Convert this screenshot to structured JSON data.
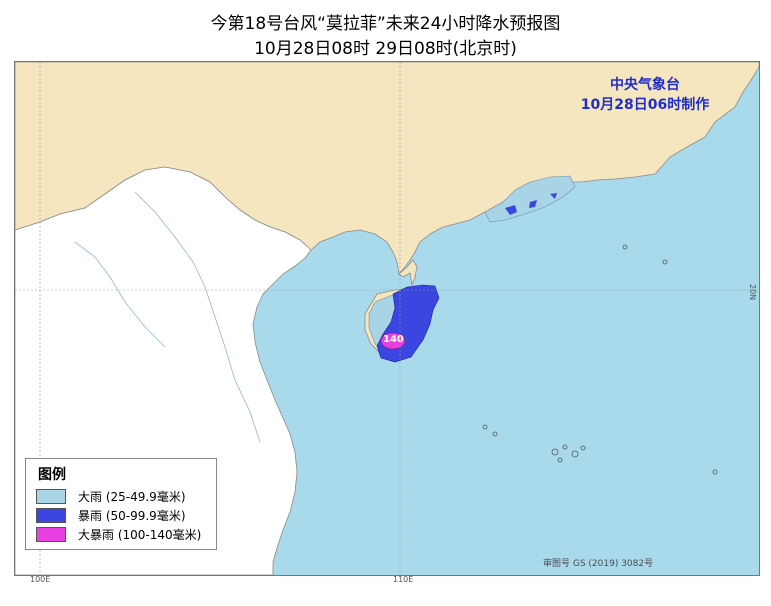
{
  "title": {
    "line1": "今𬒝第18号台风“莫拉菲”未来24小时降水预报图",
    "line2": "10月28日08时    29日08时(北京时)"
  },
  "agency": {
    "name": "中央气象台",
    "issued": "10月28日06时制作"
  },
  "legend": {
    "title": "图例",
    "items": [
      {
        "label": "大雨 (25-49.9毫米)",
        "color": "#a8d4e6"
      },
      {
        "label": "暴雨 (50-99.9毫米)",
        "color": "#3b45e0"
      },
      {
        "label": "大暴雨 (100-140毫米)",
        "color": "#e83fe0"
      }
    ]
  },
  "labels": {
    "max_value": "140",
    "lon_left": "100E",
    "lon_mid": "110E",
    "lat_right": "20N",
    "credit": "审图号 GS (2019) 3082号"
  },
  "colors": {
    "sea": "#a9daec",
    "land": "#f6e6bf",
    "land_west": "#ffffff",
    "border": "#777777"
  }
}
